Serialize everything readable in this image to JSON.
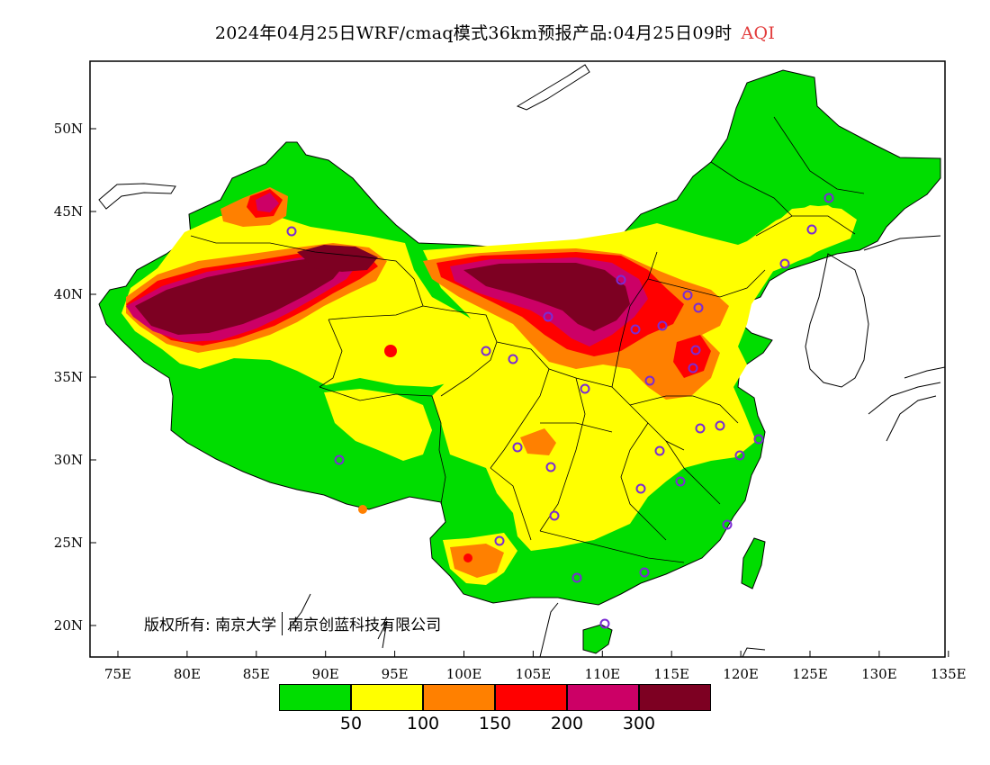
{
  "title": {
    "main": "2024年04月25日WRF/cmaq模式36km预报产品:04月25日09时",
    "variable": "AQI"
  },
  "map": {
    "lon_ticks": [
      "75E",
      "80E",
      "85E",
      "90E",
      "95E",
      "100E",
      "105E",
      "110E",
      "115E",
      "120E",
      "125E",
      "130E",
      "135E"
    ],
    "lat_ticks": [
      "50N",
      "45N",
      "40N",
      "35N",
      "30N",
      "25N",
      "20N"
    ],
    "lon_range": [
      73,
      135
    ],
    "lat_range": [
      18,
      54
    ]
  },
  "copyright": {
    "part1": "版权所有: 南京大学",
    "part2": "南京创蓝科技有限公司"
  },
  "legend": {
    "colors": [
      "#00dd00",
      "#ffff00",
      "#ff8000",
      "#ff0000",
      "#cc0066",
      "#7d0022"
    ],
    "labels": [
      "50",
      "100",
      "150",
      "200",
      "300"
    ]
  },
  "colors": {
    "good": "#00dd00",
    "moderate": "#ffff00",
    "unhealthy_sensitive": "#ff8000",
    "unhealthy": "#ff0000",
    "very_unhealthy": "#cc0066",
    "hazardous": "#7d0022",
    "station_marker": "#7a2bd4"
  }
}
